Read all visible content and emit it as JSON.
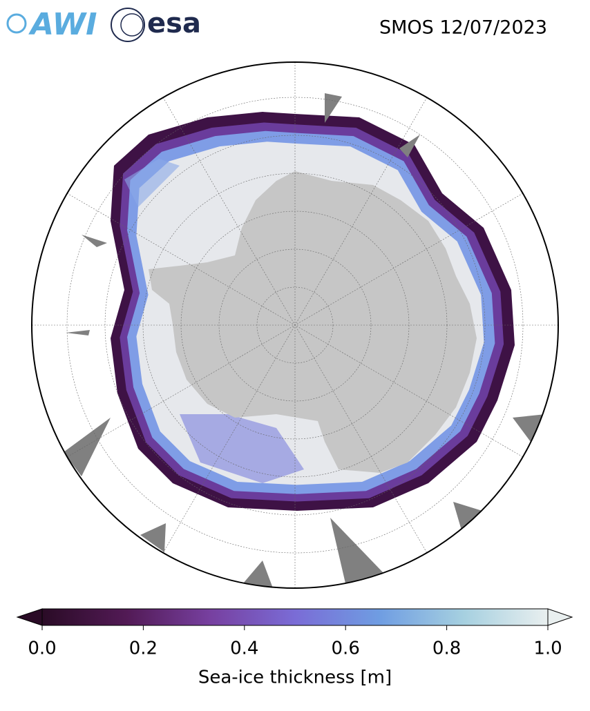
{
  "header": {
    "title": "SMOS 12/07/2023",
    "logos": [
      "AWI",
      "esa"
    ]
  },
  "colorbar": {
    "label": "Sea-ice thickness [m]",
    "range": [
      0,
      1
    ],
    "ticks": [
      {
        "value": 0,
        "label": "0.0"
      },
      0.2,
      0.4,
      0.6,
      0.8,
      {
        "value": 1,
        "label": "1.0"
      }
    ],
    "colors": [
      "#2a0b26",
      "#521a55",
      "#7740a0",
      "#7a6cd6",
      "#6f9de2",
      "#a6d0e0",
      "#e9efef"
    ]
  }
}
